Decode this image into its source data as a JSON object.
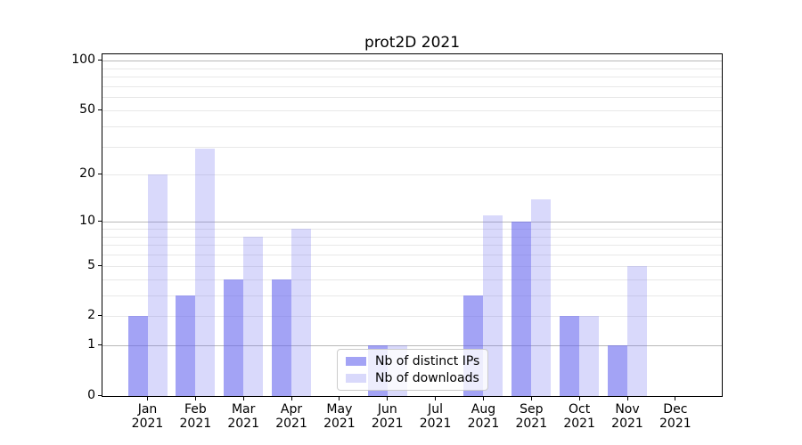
{
  "title": "prot2D 2021",
  "legend": {
    "items": [
      {
        "label": "Nb of distinct IPs",
        "series": "ips"
      },
      {
        "label": "Nb of downloads",
        "series": "downloads"
      }
    ]
  },
  "colors": {
    "bar_base": "#6666ee",
    "ips_fill": "rgba(102,102,238,0.6)",
    "downloads_fill": "rgba(102,102,238,0.25)",
    "major_grid": "#b8b8b8",
    "minor_grid": "#e8e8e8",
    "axis": "#000000"
  },
  "chart_data": {
    "type": "bar",
    "title": "prot2D 2021",
    "categories": [
      "Jan 2021",
      "Feb 2021",
      "Mar 2021",
      "Apr 2021",
      "May 2021",
      "Jun 2021",
      "Jul 2021",
      "Aug 2021",
      "Sep 2021",
      "Oct 2021",
      "Nov 2021",
      "Dec 2021"
    ],
    "series": [
      {
        "name": "Nb of distinct IPs",
        "values": [
          2,
          3,
          4,
          4,
          0,
          1,
          0,
          3,
          10,
          2,
          1,
          0
        ]
      },
      {
        "name": "Nb of downloads",
        "values": [
          20,
          29,
          8,
          9,
          0,
          1,
          0,
          11,
          14,
          2,
          5,
          0
        ]
      }
    ],
    "xlabel": "",
    "ylabel": "",
    "yscale": "log1p",
    "yticks": [
      0,
      1,
      2,
      5,
      10,
      20,
      50,
      100
    ],
    "minor_gridlines": [
      2,
      3,
      4,
      5,
      6,
      7,
      8,
      9,
      20,
      30,
      40,
      50,
      60,
      70,
      80,
      90
    ],
    "major_gridlines": [
      1,
      10,
      100
    ],
    "ylim": [
      0,
      100
    ],
    "grid": true,
    "legend_position": "lower center"
  }
}
